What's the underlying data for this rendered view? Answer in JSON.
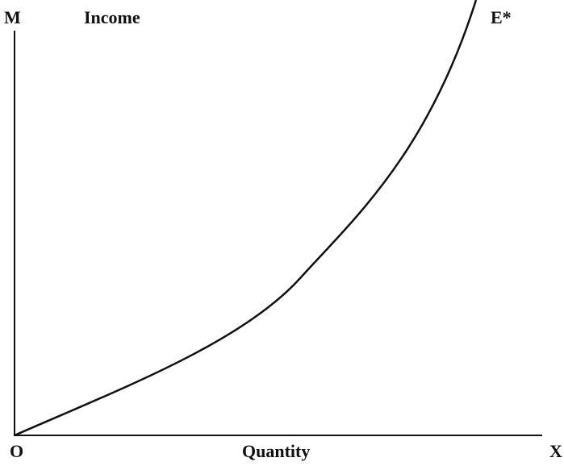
{
  "axes": {
    "y_letter": "M",
    "y_label": "Income",
    "origin": "O",
    "x_label": "Quantity",
    "x_letter": "X"
  },
  "curve": {
    "label": "E*"
  }
}
